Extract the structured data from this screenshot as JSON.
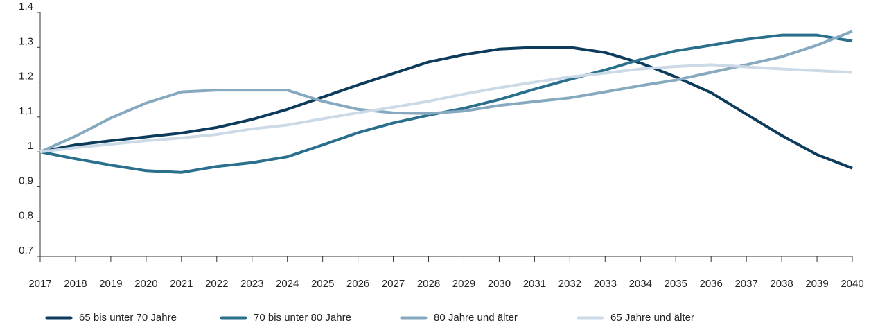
{
  "chart_data": {
    "type": "line",
    "categories": [
      "2017",
      "2018",
      "2019",
      "2020",
      "2021",
      "2022",
      "2023",
      "2024",
      "2025",
      "2026",
      "2027",
      "2028",
      "2029",
      "2030",
      "2031",
      "2032",
      "2033",
      "2034",
      "2035",
      "2036",
      "2037",
      "2038",
      "2039",
      "2040"
    ],
    "series": [
      {
        "name": "65 bis unter 70 Jahre",
        "color": "#0d3b5c",
        "values": [
          1.0,
          1.02,
          1.032,
          1.043,
          1.054,
          1.07,
          1.093,
          1.122,
          1.157,
          1.192,
          1.225,
          1.258,
          1.279,
          1.295,
          1.3,
          1.3,
          1.285,
          1.255,
          1.215,
          1.17,
          1.108,
          1.047,
          0.992,
          0.953
        ]
      },
      {
        "name": "70 bis unter 80 Jahre",
        "color": "#2a6f8c",
        "values": [
          1.0,
          0.98,
          0.962,
          0.946,
          0.941,
          0.958,
          0.969,
          0.986,
          1.02,
          1.055,
          1.083,
          1.105,
          1.125,
          1.15,
          1.18,
          1.208,
          1.235,
          1.265,
          1.29,
          1.306,
          1.323,
          1.335,
          1.335,
          1.318
        ]
      },
      {
        "name": "80 Jahre und älter",
        "color": "#86a9c0",
        "values": [
          1.0,
          1.045,
          1.097,
          1.14,
          1.172,
          1.177,
          1.177,
          1.177,
          1.145,
          1.122,
          1.112,
          1.11,
          1.117,
          1.133,
          1.144,
          1.155,
          1.172,
          1.19,
          1.206,
          1.228,
          1.25,
          1.273,
          1.306,
          1.346
        ]
      },
      {
        "name": "65 Jahre und älter",
        "color": "#ccd9e6",
        "values": [
          1.0,
          1.012,
          1.022,
          1.032,
          1.04,
          1.05,
          1.066,
          1.077,
          1.095,
          1.112,
          1.128,
          1.145,
          1.166,
          1.184,
          1.2,
          1.215,
          1.226,
          1.238,
          1.245,
          1.25,
          1.244,
          1.238,
          1.233,
          1.228
        ]
      }
    ],
    "ylim": [
      0.7,
      1.4
    ],
    "yticks": [
      {
        "value": 0.7,
        "label": "0,7"
      },
      {
        "value": 0.8,
        "label": "0,8"
      },
      {
        "value": 0.9,
        "label": "0,9"
      },
      1,
      {
        "value": 1.1,
        "label": "1,1"
      },
      {
        "value": 1.2,
        "label": "1,2"
      },
      {
        "value": 1.3,
        "label": "1,3"
      },
      {
        "value": 1.4,
        "label": "1,4"
      }
    ],
    "grid": false
  }
}
